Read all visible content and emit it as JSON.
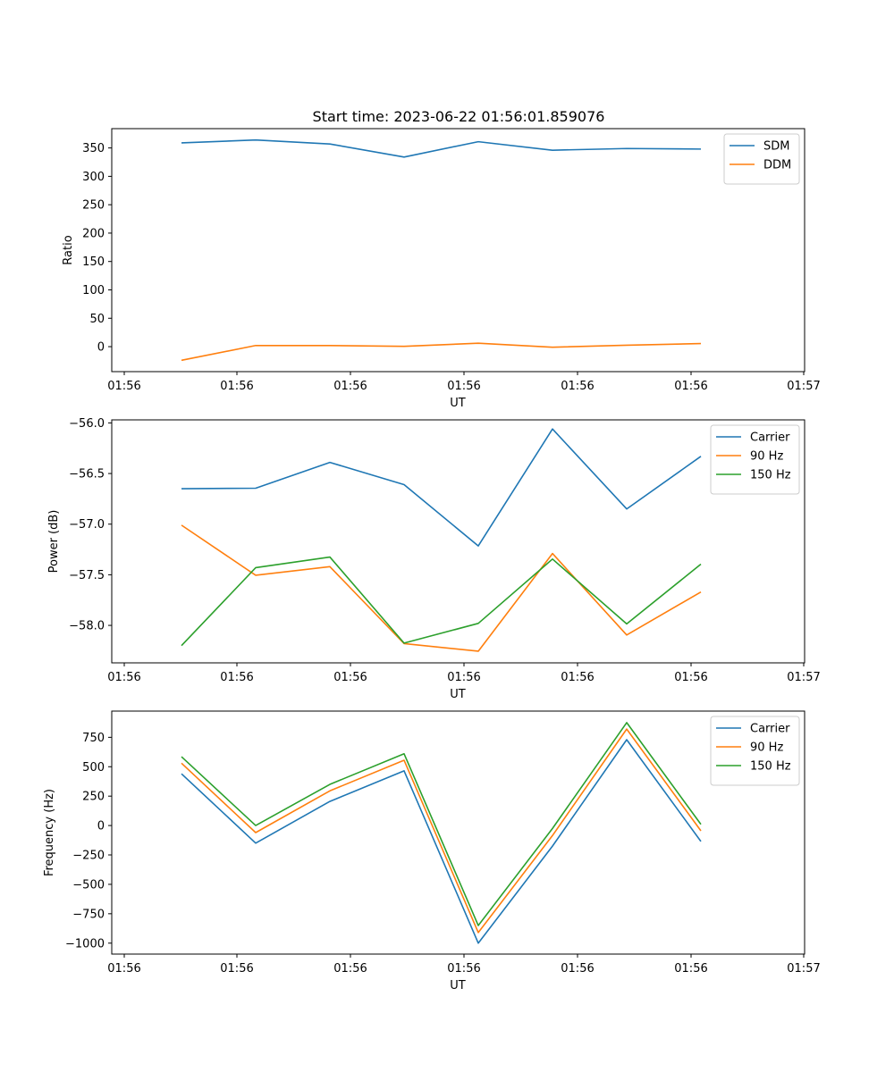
{
  "title": "Start time: 2023-06-22 01:56:01.859076",
  "colors": {
    "blue": "#1f77b4",
    "orange": "#ff7f0e",
    "green": "#2ca02c"
  },
  "chart_data": [
    {
      "type": "line",
      "xlabel": "UT",
      "ylabel": "Ratio",
      "x_tick_labels": [
        "01:56",
        "01:56",
        "01:56",
        "01:56",
        "01:56",
        "01:56",
        "01:56"
      ],
      "x_tick_last": "01:57",
      "yticks": [
        0,
        50,
        100,
        150,
        200,
        250,
        300,
        350
      ],
      "ytick_labels": [
        "0",
        "50",
        "100",
        "150",
        "200",
        "250",
        "300",
        "350"
      ],
      "ylim": [
        -44,
        384
      ],
      "legend_loc": "top-right",
      "series": [
        {
          "name": "SDM",
          "color": "#1f77b4",
          "values": [
            359,
            364,
            357,
            334,
            361,
            346,
            349,
            348
          ]
        },
        {
          "name": "DDM",
          "color": "#ff7f0e",
          "values": [
            -24,
            2,
            2,
            0.5,
            6,
            -1,
            2.5,
            5.5
          ]
        }
      ]
    },
    {
      "type": "line",
      "xlabel": "UT",
      "ylabel": "Power (dB)",
      "x_tick_labels": [
        "01:56",
        "01:56",
        "01:56",
        "01:56",
        "01:56",
        "01:56",
        "01:56"
      ],
      "x_tick_last": "01:57",
      "yticks": [
        -58.0,
        -57.5,
        -57.0,
        -56.5,
        -56.0
      ],
      "ytick_labels": [
        "−58.0",
        "−57.5",
        "−57.0",
        "−56.5",
        "−56.0"
      ],
      "ylim": [
        -58.37,
        -55.97
      ],
      "legend_loc": "top-right",
      "series": [
        {
          "name": "Carrier",
          "color": "#1f77b4",
          "values": [
            -56.65,
            -56.645,
            -56.39,
            -56.61,
            -57.215,
            -56.06,
            -56.85,
            -56.33
          ]
        },
        {
          "name": "90 Hz",
          "color": "#ff7f0e",
          "values": [
            -57.01,
            -57.505,
            -57.42,
            -58.18,
            -58.255,
            -57.29,
            -58.095,
            -57.67
          ]
        },
        {
          "name": "150 Hz",
          "color": "#2ca02c",
          "values": [
            -58.2,
            -57.43,
            -57.325,
            -58.175,
            -57.98,
            -57.345,
            -57.985,
            -57.395
          ]
        }
      ]
    },
    {
      "type": "line",
      "xlabel": "UT",
      "ylabel": "Frequency (Hz)",
      "x_tick_labels": [
        "01:56",
        "01:56",
        "01:56",
        "01:56",
        "01:56",
        "01:56",
        "01:56"
      ],
      "x_tick_last": "01:57",
      "yticks": [
        -1000,
        -750,
        -500,
        -250,
        0,
        250,
        500,
        750
      ],
      "ytick_labels": [
        "−1000",
        "−750",
        "−500",
        "−250",
        "0",
        "250",
        "500",
        "750"
      ],
      "ylim": [
        -1093,
        973
      ],
      "legend_loc": "top-right",
      "series": [
        {
          "name": "Carrier",
          "color": "#1f77b4",
          "values": [
            440,
            -150,
            205,
            465,
            -1000,
            -175,
            730,
            -135
          ]
        },
        {
          "name": "90 Hz",
          "color": "#ff7f0e",
          "values": [
            530,
            -60,
            295,
            555,
            -910,
            -85,
            820,
            -45
          ]
        },
        {
          "name": "150 Hz",
          "color": "#2ca02c",
          "values": [
            585,
            0,
            350,
            610,
            -850,
            -25,
            875,
            10
          ]
        }
      ]
    }
  ]
}
